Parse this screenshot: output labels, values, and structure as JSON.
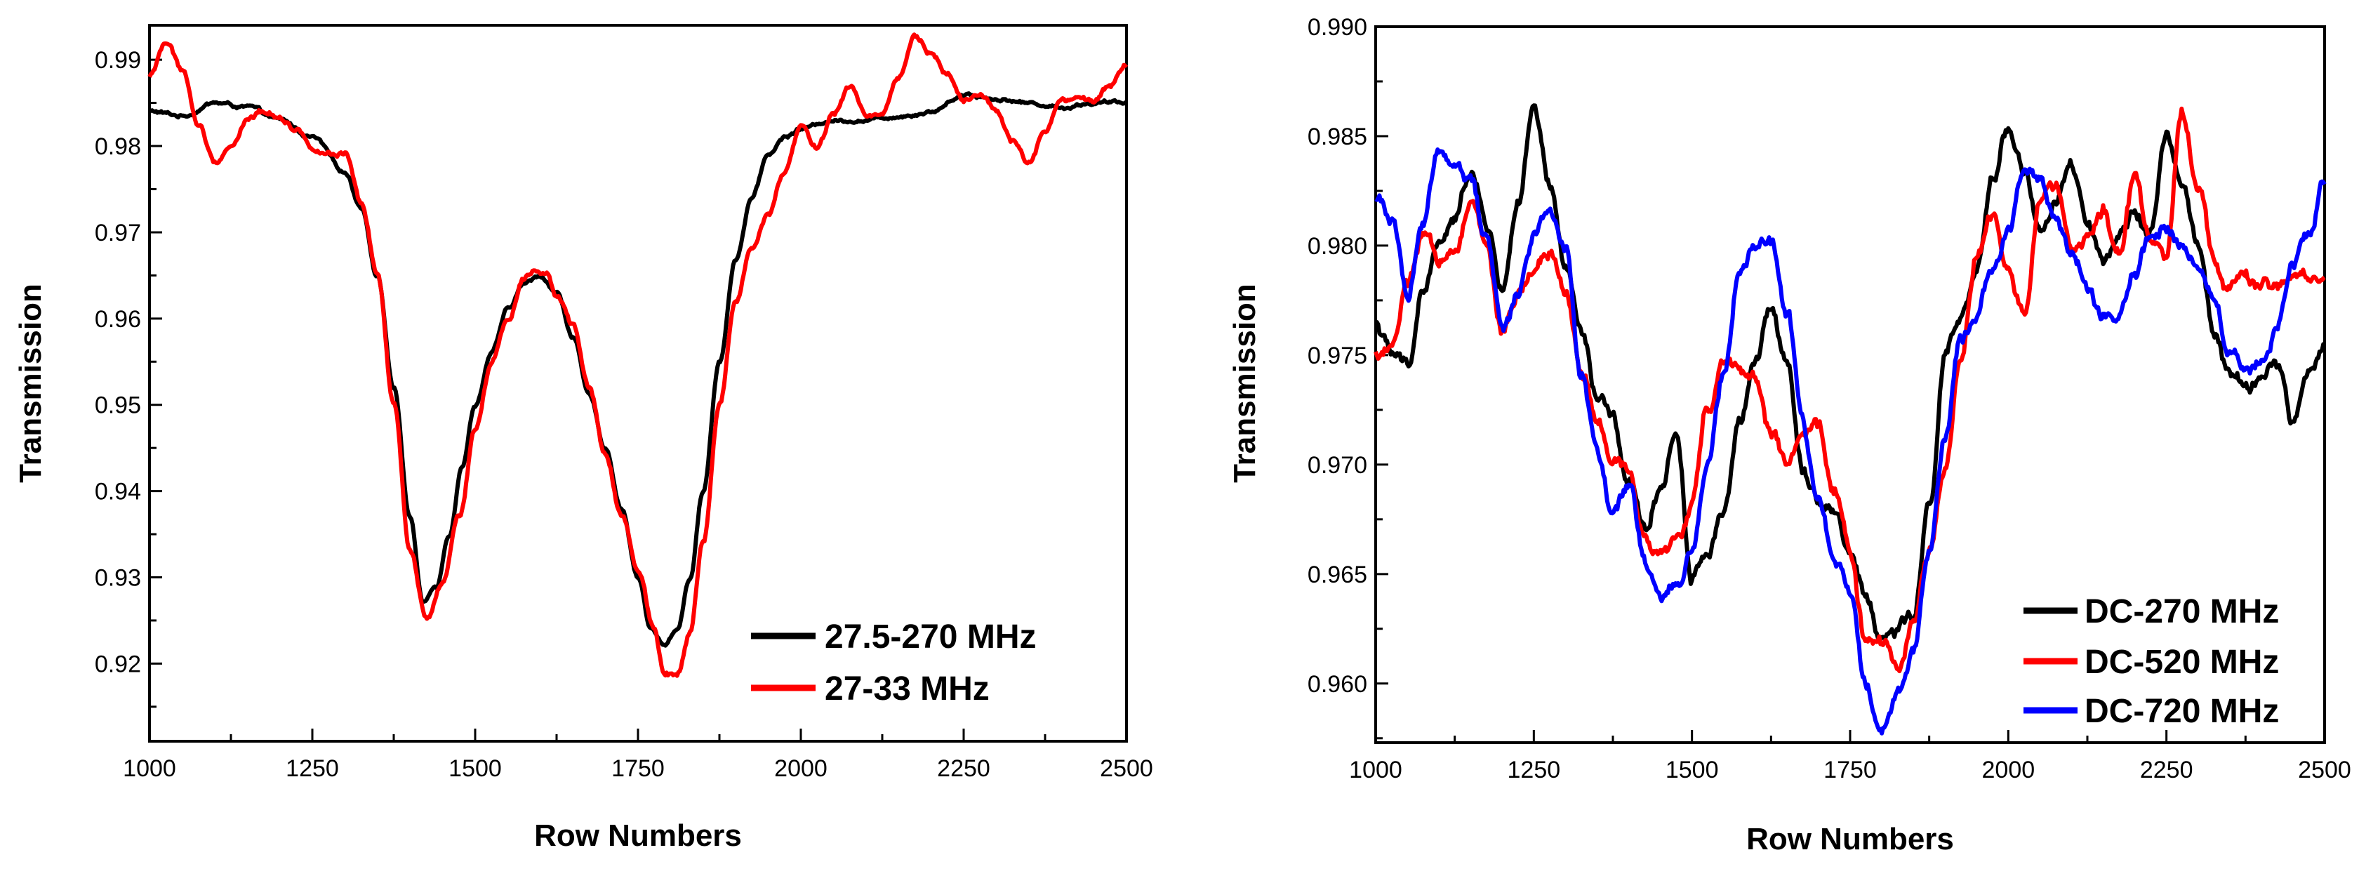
{
  "chart_data": [
    {
      "type": "line",
      "xlabel": "Row Numbers",
      "ylabel": "Transmission",
      "xlim": [
        1000,
        2500
      ],
      "ylim": [
        0.911,
        0.994
      ],
      "xticks": [
        "1000",
        "1250",
        "1500",
        "1750",
        "2000",
        "2250",
        "2500"
      ],
      "yticks": [
        "0.92",
        "0.93",
        "0.94",
        "0.95",
        "0.96",
        "0.97",
        "0.98",
        "0.99"
      ],
      "legend_position": "bottom-right",
      "series": [
        {
          "name": "27.5-270 MHz",
          "color": "#000000",
          "x": [
            1000,
            1050,
            1100,
            1150,
            1200,
            1250,
            1300,
            1325,
            1350,
            1375,
            1400,
            1420,
            1440,
            1460,
            1480,
            1500,
            1525,
            1550,
            1575,
            1600,
            1625,
            1650,
            1675,
            1700,
            1725,
            1750,
            1770,
            1790,
            1810,
            1830,
            1850,
            1875,
            1900,
            1925,
            1950,
            1975,
            2000,
            2050,
            2100,
            2150,
            2200,
            2250,
            2300,
            2350,
            2400,
            2450,
            2500
          ],
          "y": [
            0.984,
            0.9835,
            0.985,
            0.9845,
            0.983,
            0.981,
            0.977,
            0.973,
            0.965,
            0.952,
            0.937,
            0.927,
            0.929,
            0.935,
            0.943,
            0.95,
            0.956,
            0.961,
            0.964,
            0.965,
            0.963,
            0.958,
            0.951,
            0.945,
            0.938,
            0.93,
            0.924,
            0.922,
            0.924,
            0.93,
            0.94,
            0.955,
            0.967,
            0.974,
            0.979,
            0.981,
            0.982,
            0.983,
            0.983,
            0.9835,
            0.984,
            0.986,
            0.9855,
            0.985,
            0.9845,
            0.985,
            0.985
          ]
        },
        {
          "name": "27-33 MHz",
          "color": "#ff0000",
          "x": [
            1000,
            1025,
            1050,
            1075,
            1100,
            1125,
            1150,
            1175,
            1200,
            1225,
            1250,
            1275,
            1300,
            1325,
            1350,
            1375,
            1400,
            1425,
            1450,
            1475,
            1500,
            1525,
            1550,
            1575,
            1590,
            1610,
            1625,
            1650,
            1675,
            1700,
            1725,
            1750,
            1775,
            1790,
            1810,
            1830,
            1850,
            1875,
            1900,
            1925,
            1950,
            1975,
            2000,
            2025,
            2050,
            2075,
            2100,
            2125,
            2150,
            2175,
            2200,
            2225,
            2250,
            2275,
            2300,
            2325,
            2350,
            2375,
            2400,
            2425,
            2450,
            2475,
            2500
          ],
          "y": [
            0.988,
            0.992,
            0.989,
            0.9825,
            0.978,
            0.98,
            0.983,
            0.984,
            0.9835,
            0.982,
            0.98,
            0.979,
            0.979,
            0.973,
            0.965,
            0.95,
            0.933,
            0.925,
            0.929,
            0.937,
            0.947,
            0.955,
            0.96,
            0.965,
            0.966,
            0.9655,
            0.963,
            0.959,
            0.952,
            0.944,
            0.937,
            0.931,
            0.924,
            0.919,
            0.919,
            0.924,
            0.934,
            0.95,
            0.962,
            0.968,
            0.972,
            0.977,
            0.982,
            0.98,
            0.9835,
            0.987,
            0.9835,
            0.984,
            0.988,
            0.993,
            0.991,
            0.9885,
            0.9855,
            0.986,
            0.984,
            0.9805,
            0.978,
            0.9815,
            0.985,
            0.9855,
            0.985,
            0.987,
            0.9895
          ]
        }
      ]
    },
    {
      "type": "line",
      "xlabel": "Row Numbers",
      "ylabel": "Transmission",
      "xlim": [
        1000,
        2500
      ],
      "ylim": [
        0.9573,
        0.99
      ],
      "xticks": [
        "1000",
        "1250",
        "1500",
        "1750",
        "2000",
        "2250",
        "2500"
      ],
      "yticks": [
        "0.960",
        "0.965",
        "0.970",
        "0.975",
        "0.980",
        "0.985",
        "0.990"
      ],
      "legend_position": "bottom-right",
      "series": [
        {
          "name": "DC-270 MHz",
          "color": "#000000",
          "x": [
            1000,
            1025,
            1050,
            1075,
            1100,
            1125,
            1150,
            1175,
            1200,
            1225,
            1250,
            1275,
            1300,
            1325,
            1350,
            1375,
            1400,
            1425,
            1450,
            1475,
            1500,
            1525,
            1550,
            1575,
            1600,
            1625,
            1650,
            1675,
            1700,
            1725,
            1750,
            1775,
            1800,
            1825,
            1850,
            1875,
            1900,
            1925,
            1950,
            1975,
            2000,
            2025,
            2050,
            2075,
            2100,
            2125,
            2150,
            2175,
            2200,
            2225,
            2250,
            2275,
            2300,
            2325,
            2350,
            2375,
            2400,
            2425,
            2450,
            2475,
            2500
          ],
          "y": [
            0.9765,
            0.975,
            0.9745,
            0.978,
            0.98,
            0.981,
            0.9835,
            0.981,
            0.978,
            0.982,
            0.986,
            0.9825,
            0.979,
            0.976,
            0.973,
            0.972,
            0.969,
            0.967,
            0.969,
            0.9715,
            0.965,
            0.966,
            0.968,
            0.972,
            0.9745,
            0.977,
            0.975,
            0.97,
            0.9685,
            0.968,
            0.966,
            0.964,
            0.962,
            0.9625,
            0.963,
            0.968,
            0.975,
            0.9765,
            0.9785,
            0.983,
            0.9855,
            0.9835,
            0.9805,
            0.982,
            0.9835,
            0.981,
            0.979,
            0.98,
            0.9815,
            0.981,
            0.985,
            0.9825,
            0.98,
            0.976,
            0.974,
            0.9735,
            0.974,
            0.9745,
            0.972,
            0.974,
            0.9755
          ]
        },
        {
          "name": "DC-520 MHz",
          "color": "#ff0000",
          "x": [
            1000,
            1025,
            1050,
            1075,
            1100,
            1125,
            1150,
            1175,
            1200,
            1225,
            1250,
            1275,
            1300,
            1325,
            1350,
            1375,
            1400,
            1425,
            1450,
            1475,
            1500,
            1525,
            1550,
            1575,
            1600,
            1625,
            1650,
            1675,
            1700,
            1725,
            1750,
            1775,
            1800,
            1825,
            1850,
            1875,
            1900,
            1925,
            1950,
            1975,
            2000,
            2025,
            2050,
            2075,
            2100,
            2125,
            2150,
            2175,
            2200,
            2225,
            2250,
            2275,
            2300,
            2325,
            2350,
            2375,
            2400,
            2425,
            2450,
            2475,
            2500
          ],
          "y": [
            0.975,
            0.9755,
            0.978,
            0.9805,
            0.979,
            0.98,
            0.982,
            0.98,
            0.976,
            0.9775,
            0.979,
            0.9795,
            0.978,
            0.9745,
            0.972,
            0.97,
            0.9695,
            0.967,
            0.966,
            0.9665,
            0.968,
            0.9725,
            0.975,
            0.9745,
            0.974,
            0.9715,
            0.97,
            0.971,
            0.9715,
            0.969,
            0.966,
            0.962,
            0.9615,
            0.961,
            0.963,
            0.966,
            0.97,
            0.975,
            0.9795,
            0.9815,
            0.9785,
            0.977,
            0.982,
            0.9825,
            0.98,
            0.9805,
            0.9815,
            0.9795,
            0.983,
            0.98,
            0.9795,
            0.9865,
            0.983,
            0.9795,
            0.978,
            0.9785,
            0.978,
            0.978,
            0.9785,
            0.9785,
            0.9785
          ]
        },
        {
          "name": "DC-720 MHz",
          "color": "#0000ff",
          "x": [
            1000,
            1025,
            1050,
            1075,
            1100,
            1125,
            1150,
            1175,
            1200,
            1225,
            1250,
            1275,
            1300,
            1325,
            1350,
            1375,
            1400,
            1425,
            1450,
            1475,
            1500,
            1525,
            1550,
            1575,
            1600,
            1625,
            1650,
            1675,
            1700,
            1725,
            1750,
            1775,
            1800,
            1825,
            1850,
            1875,
            1900,
            1925,
            1950,
            1975,
            2000,
            2025,
            2050,
            2075,
            2100,
            2125,
            2150,
            2175,
            2200,
            2225,
            2250,
            2275,
            2300,
            2325,
            2350,
            2375,
            2400,
            2425,
            2450,
            2475,
            2500
          ],
          "y": [
            0.982,
            0.9815,
            0.978,
            0.981,
            0.9845,
            0.984,
            0.983,
            0.9805,
            0.976,
            0.978,
            0.9805,
            0.982,
            0.98,
            0.974,
            0.9705,
            0.968,
            0.969,
            0.9655,
            0.964,
            0.9645,
            0.966,
            0.97,
            0.974,
            0.9785,
            0.98,
            0.98,
            0.977,
            0.972,
            0.968,
            0.9655,
            0.964,
            0.96,
            0.958,
            0.9595,
            0.9615,
            0.966,
            0.971,
            0.976,
            0.977,
            0.979,
            0.981,
            0.9835,
            0.983,
            0.9815,
            0.9795,
            0.978,
            0.9765,
            0.9765,
            0.9785,
            0.9805,
            0.981,
            0.98,
            0.9795,
            0.978,
            0.975,
            0.9745,
            0.9745,
            0.976,
            0.979,
            0.9805,
            0.983
          ]
        }
      ]
    }
  ]
}
